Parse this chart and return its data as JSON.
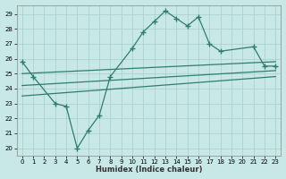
{
  "xlabel": "Humidex (Indice chaleur)",
  "bg_color": "#c8e8e8",
  "grid_color": "#b0d0d0",
  "line_color": "#2e7d6e",
  "ylim": [
    19.5,
    29.6
  ],
  "xlim": [
    -0.5,
    23.5
  ],
  "yticks": [
    20,
    21,
    22,
    23,
    24,
    25,
    26,
    27,
    28,
    29
  ],
  "xticks": [
    0,
    1,
    2,
    3,
    4,
    5,
    6,
    7,
    8,
    9,
    10,
    11,
    12,
    13,
    14,
    15,
    16,
    17,
    18,
    19,
    20,
    21,
    22,
    23
  ],
  "main_x": [
    0,
    1,
    3,
    4,
    5,
    6,
    7,
    8,
    10,
    11,
    12,
    13,
    14,
    15,
    16,
    17,
    18,
    21,
    22,
    23
  ],
  "main_y": [
    25.8,
    24.8,
    23.0,
    22.8,
    20.0,
    21.2,
    22.2,
    24.8,
    26.7,
    27.8,
    28.5,
    29.2,
    28.7,
    28.2,
    28.8,
    27.0,
    26.5,
    26.8,
    25.5,
    25.5
  ],
  "line2_x": [
    0,
    23
  ],
  "line2_y": [
    25.0,
    25.8
  ],
  "line3_x": [
    0,
    23
  ],
  "line3_y": [
    24.2,
    25.2
  ],
  "line4_x": [
    0,
    23
  ],
  "line4_y": [
    23.5,
    24.8
  ]
}
